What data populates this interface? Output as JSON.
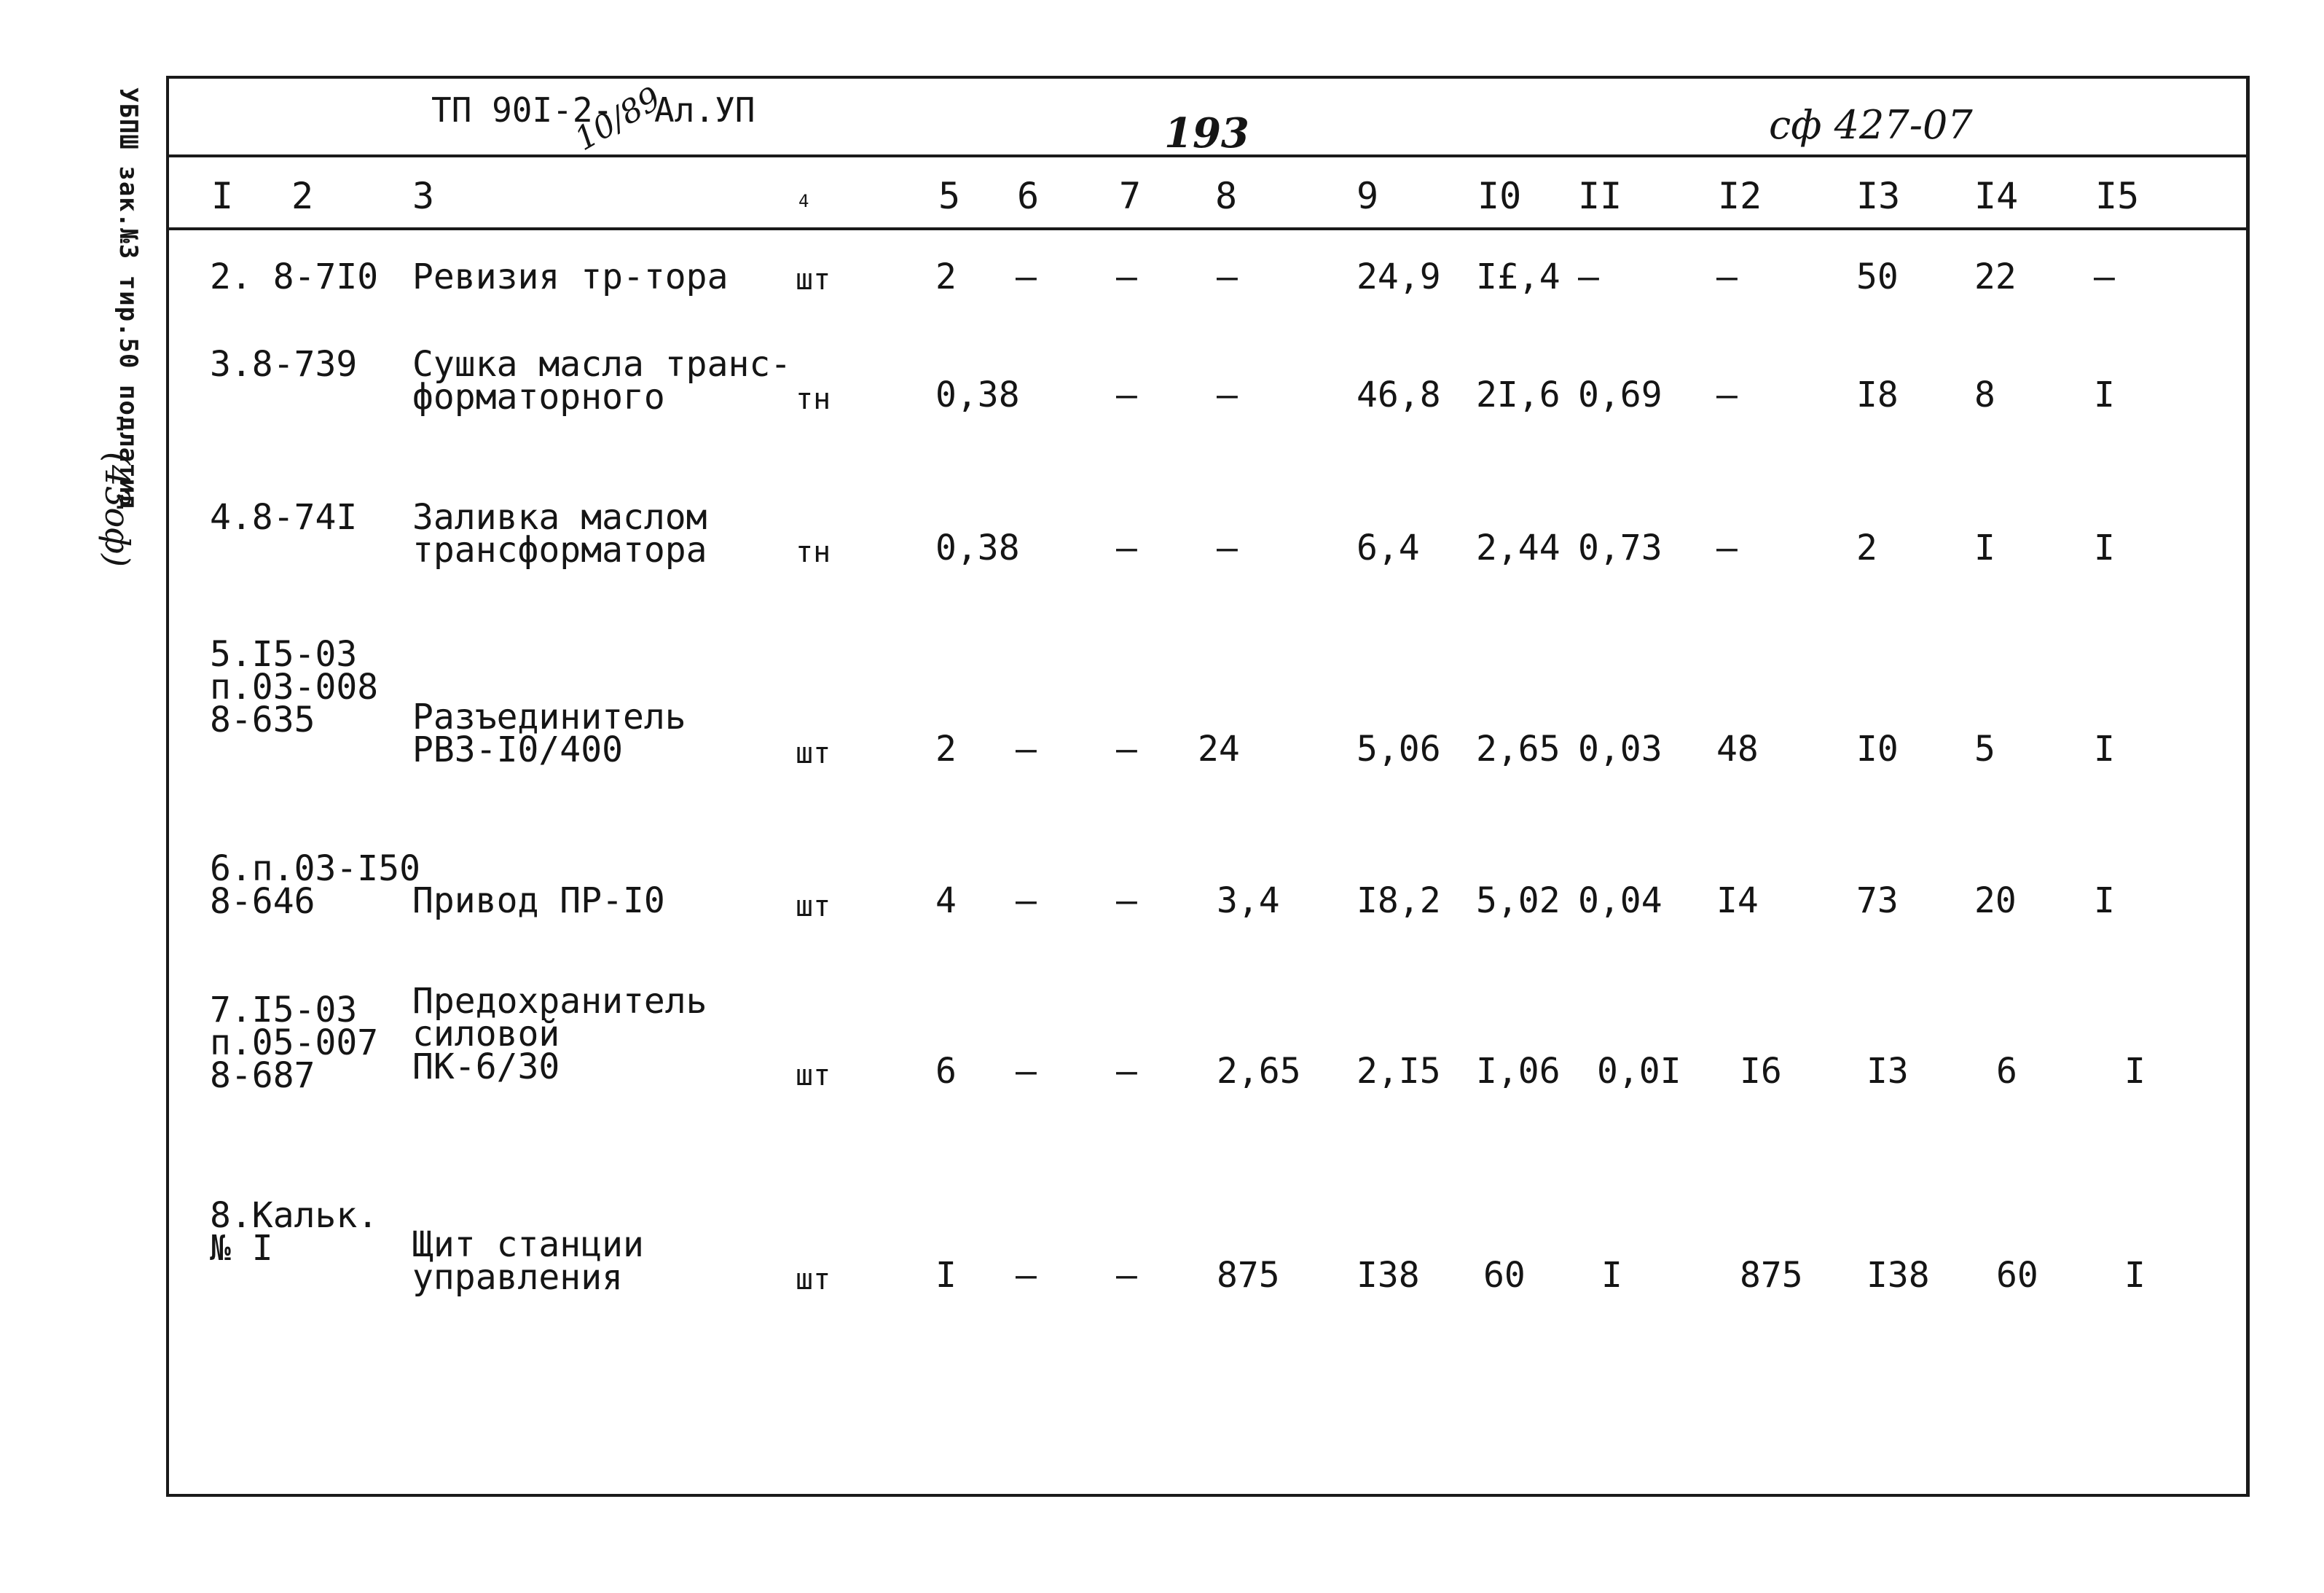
{
  "margin": {
    "stamp": "УБПШ зак.№3 тир.50 подлатид",
    "note": "(43оф)"
  },
  "header": {
    "doc_code": "ТП 90I-2-",
    "album": "Ал.УП",
    "doc_code_suffix": "10/89",
    "page_number": "193",
    "sheet_ref": "сф 427-07"
  },
  "column_numbers": [
    "I",
    "2",
    "3",
    "4",
    "5",
    "6",
    "7",
    "8",
    "9",
    "I0",
    "II",
    "I2",
    "I3",
    "I4",
    "I5"
  ],
  "rows": [
    {
      "code": "2. 8-7I0",
      "name": "Ревизия тр-тора",
      "unit": "шт",
      "c5": "2",
      "c6": "–",
      "c7": "–",
      "c8": "–",
      "c9": "24,9",
      "c10": "I£,4",
      "c11": "–",
      "c12": "–",
      "c13": "50",
      "c14": "22",
      "c15": "–"
    },
    {
      "code": "3.8-739",
      "name": "Сушка масла транс-\nформаторного",
      "unit": "тн",
      "c5": "0,38",
      "c6": "",
      "c7": "–",
      "c8": "–",
      "c9": "46,8",
      "c10": "2I,6",
      "c11": "0,69",
      "c12": "–",
      "c13": "I8",
      "c14": "8",
      "c15": "I"
    },
    {
      "code": "4.8-74I",
      "name": "Заливка маслом\nтрансформатора",
      "unit": "тн",
      "c5": "0,38",
      "c6": "",
      "c7": "–",
      "c8": "–",
      "c9": "6,4",
      "c10": "2,44",
      "c11": "0,73",
      "c12": "–",
      "c13": "2",
      "c14": "I",
      "c15": "I"
    },
    {
      "code": "5.I5-03\nп.03-008\n8-635",
      "name": "Разъединитель\nРВЗ-I0/400",
      "unit": "шт",
      "c5": "2",
      "c6": "–",
      "c7": "–",
      "c8": "24",
      "c9": "5,06",
      "c10": "2,65",
      "c11": "0,03",
      "c12": "48",
      "c13": "I0",
      "c14": "5",
      "c15": "I"
    },
    {
      "code": "6.п.03-I50\n8-646",
      "name": "Привод ПР-I0",
      "unit": "шт",
      "c5": "4",
      "c6": "–",
      "c7": "–",
      "c8": "3,4",
      "c9": "I8,2",
      "c10": "5,02",
      "c11": "0,04",
      "c12": "I4",
      "c13": "73",
      "c14": "20",
      "c15": "I"
    },
    {
      "code": "7.I5-03\nп.05-007\n8-687",
      "name": "Предохранитель\nсиловой\nПК-6/30",
      "unit": "шт",
      "c5": "6",
      "c6": "–",
      "c7": "–",
      "c8": "2,65",
      "c9": "2,I5",
      "c10": "I,06",
      "c11": "0,0I",
      "c12": "I6",
      "c13": "I3",
      "c14": "6",
      "c15": "I"
    },
    {
      "code": "8.Кальк.\n№ I",
      "name": "Щит станции\nуправления",
      "unit": "шт",
      "c5": "I",
      "c6": "–",
      "c7": "–",
      "c8": "875",
      "c9": "I38",
      "c10": "60",
      "c11": "I",
      "c12": "875",
      "c13": "I38",
      "c14": "60",
      "c15": "I"
    }
  ]
}
